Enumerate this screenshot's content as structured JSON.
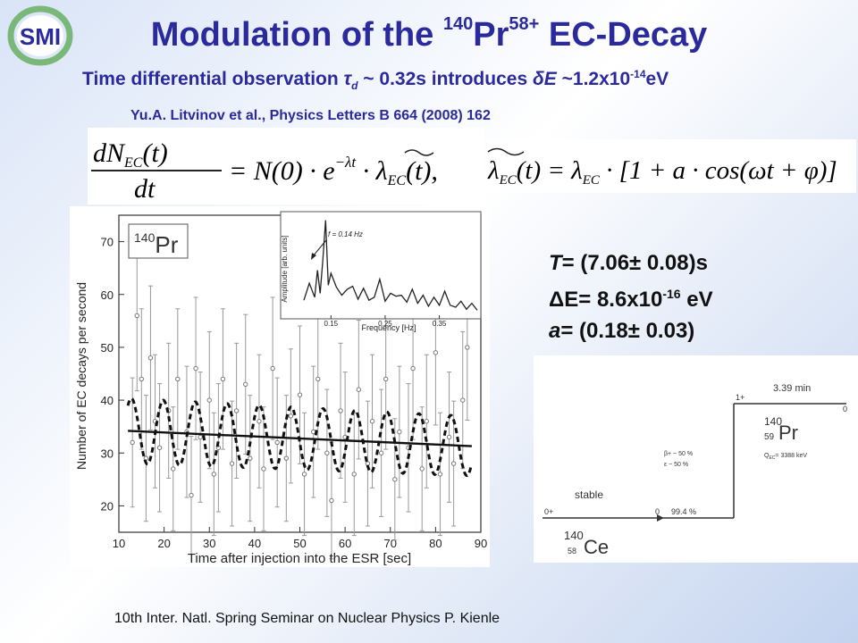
{
  "logo": {
    "text": "SMI",
    "color": "#2a2a9c",
    "ring_color": "#7ab87a"
  },
  "title": {
    "prefix": "Modulation of the ",
    "mass": "140",
    "element": "Pr",
    "charge": "58+",
    "suffix": " EC-Decay"
  },
  "subtitle": {
    "part1": "Time differential observation ",
    "tau": "τ",
    "tau_sub": "d",
    "part2": " ~ 0.32s introduces ",
    "delta": "δ",
    "e": "E",
    "part3": " ~1.2x10",
    "exp": "-14",
    "unit": "eV"
  },
  "citation": "Yu.A. Litvinov et al., Physics Letters B 664 (2008) 162",
  "formulas": {
    "left_lhs_num": "dN",
    "left_lhs_sub": "EC",
    "left_lhs_arg": "(t)",
    "left_lhs_den": "dt",
    "left_rhs": "= N(0) · e",
    "left_exp": "−λt",
    "left_rhs2": " · λ",
    "left_rhs2_sub": "EC",
    "left_rhs2_arg": "(t),",
    "right_lhs": "λ",
    "right_lhs_sub": "EC",
    "right_lhs_arg": "(t) = λ",
    "right_sub2": "EC",
    "right_rhs": " · [1 + a · cos(ωt + φ)]"
  },
  "results": {
    "line1_var": "T",
    "line1": "= (7.06± 0.08)s",
    "line2": "ΔE= 8.6x10",
    "line2_exp": "-16",
    "line2_unit": " eV",
    "line3_var": "a",
    "line3": "= (0.18± 0.03)"
  },
  "chart_data": {
    "type": "scatter",
    "legend": "140Pr",
    "legend_mass": "140",
    "legend_element": "Pr",
    "xlabel": "Time after injection into the ESR [sec]",
    "ylabel": "Number of EC decays per second",
    "xticks": [
      "10",
      "20",
      "30",
      "40",
      "50",
      "60",
      "70",
      "80",
      "90"
    ],
    "yticks": [
      "20",
      "30",
      "40",
      "50",
      "60",
      "70"
    ],
    "xlim": [
      10,
      90
    ],
    "ylim": [
      15,
      75
    ],
    "x": [
      13,
      14,
      15,
      16,
      17,
      18,
      19,
      21,
      22,
      23,
      25,
      26,
      27,
      28,
      30,
      31,
      32,
      33,
      35,
      36,
      38,
      39,
      41,
      42,
      44,
      45,
      47,
      48,
      50,
      51,
      53,
      54,
      56,
      57,
      59,
      60,
      62,
      63,
      65,
      66,
      68,
      69,
      71,
      72,
      74,
      75,
      77,
      78,
      80,
      81,
      83,
      84,
      86,
      87
    ],
    "y": [
      32,
      56,
      44,
      29,
      48,
      36,
      31,
      38,
      27,
      44,
      34,
      22,
      46,
      33,
      40,
      26,
      31,
      44,
      28,
      38,
      43,
      29,
      36,
      27,
      46,
      32,
      29,
      37,
      41,
      26,
      34,
      44,
      30,
      21,
      38,
      33,
      26,
      42,
      28,
      36,
      30,
      44,
      25,
      34,
      31,
      46,
      27,
      36,
      49,
      26,
      33,
      28,
      40,
      50
    ],
    "fit_line": {
      "x": [
        12,
        88
      ],
      "y": [
        34.2,
        31.3
      ]
    },
    "fit_modulated": {
      "amplitude": 0.18,
      "period": 7.06,
      "phase": 1.2
    },
    "inset": {
      "type": "line",
      "xlabel": "Frequency [Hz]",
      "ylabel": "Amplitude [arb. units]",
      "xticks": [
        "0.15",
        "0.25",
        "0.35"
      ],
      "xlim": [
        0.1,
        0.42
      ],
      "ylim": [
        0,
        10
      ],
      "x": [
        0.1,
        0.11,
        0.12,
        0.125,
        0.13,
        0.135,
        0.14,
        0.145,
        0.15,
        0.16,
        0.17,
        0.18,
        0.19,
        0.2,
        0.21,
        0.22,
        0.23,
        0.24,
        0.25,
        0.26,
        0.27,
        0.28,
        0.29,
        0.3,
        0.31,
        0.32,
        0.33,
        0.34,
        0.35,
        0.36,
        0.37,
        0.38,
        0.39,
        0.4,
        0.41,
        0.42
      ],
      "y": [
        1.5,
        3.2,
        1.8,
        4.5,
        2.2,
        5.5,
        9.5,
        3.0,
        4.2,
        2.8,
        2.0,
        2.6,
        2.9,
        1.6,
        2.7,
        1.5,
        1.8,
        3.6,
        1.4,
        2.2,
        1.9,
        2.0,
        1.3,
        2.6,
        1.2,
        2.0,
        0.9,
        1.8,
        1.0,
        2.4,
        1.0,
        0.8,
        1.4,
        0.6,
        1.2,
        0.5
      ],
      "annotation": "f = 0.14 Hz"
    }
  },
  "level_scheme": {
    "halflife": "3.39 min",
    "spin_top": "1+",
    "parent_mass": "140",
    "parent_z": "59",
    "parent_element": "Pr",
    "beta_plus": "β+  ~ 50 %",
    "ec": "ε    ~ 50 %",
    "q_value": "Q",
    "q_sub": "EC",
    "q_value_text": "= 3388 keV",
    "stable": "stable",
    "spin_bottom": "0+",
    "branch": "99.4 %",
    "zero_left": "0",
    "zero_right": "0",
    "daughter_mass": "140",
    "daughter_z": "58",
    "daughter_element": "Ce"
  },
  "footer": "10th Inter. Natl. Spring Seminar on Nuclear Physics   P. Kienle"
}
